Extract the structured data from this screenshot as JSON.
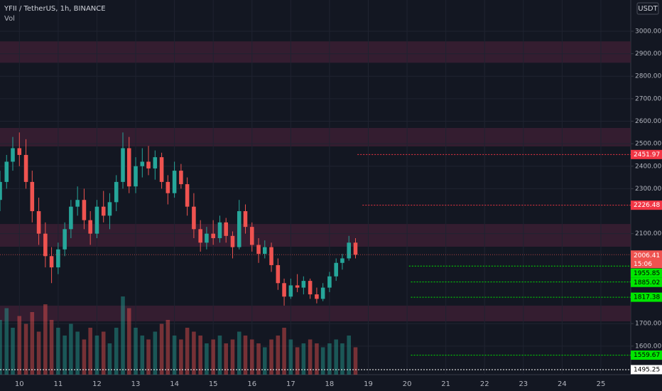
{
  "chart_data": {
    "type": "candlestick",
    "title": "YFII / TetherUS, 1h, BINANCE",
    "volume_label": "Vol",
    "currency": "USDT",
    "xlim": [
      9.5,
      25.77
    ],
    "xticks": [
      10,
      11,
      12,
      13,
      14,
      15,
      16,
      17,
      18,
      19,
      20,
      21,
      22,
      23,
      24,
      25
    ],
    "ylim": [
      1473,
      3139
    ],
    "yticks": [
      {
        "value": 3000,
        "label": "3000.00"
      },
      {
        "value": 2900,
        "label": "2900.00"
      },
      {
        "value": 2800,
        "label": "2800.00"
      },
      {
        "value": 2700,
        "label": "2700.00"
      },
      {
        "value": 2600,
        "label": "2600.00"
      },
      {
        "value": 2500,
        "label": "2500.00"
      },
      {
        "value": 2400,
        "label": "2400.00"
      },
      {
        "value": 2300,
        "label": "2300.00"
      },
      {
        "value": 2100,
        "label": "2100.00"
      },
      {
        "value": 1700,
        "label": "1700.00"
      },
      {
        "value": 1600,
        "label": "1600.00"
      }
    ],
    "grid": true,
    "up_color": "#26a69a",
    "down_color": "#ef5350",
    "zone_color": "#3b1e33",
    "zones": [
      [
        2860,
        2955
      ],
      [
        2488,
        2570
      ],
      [
        2042,
        2143
      ],
      [
        1710,
        1780
      ]
    ],
    "x": [
      9.5,
      9.67,
      9.83,
      10.0,
      10.17,
      10.33,
      10.5,
      10.67,
      10.83,
      11.0,
      11.17,
      11.33,
      11.5,
      11.67,
      11.83,
      12.0,
      12.17,
      12.33,
      12.5,
      12.67,
      12.83,
      13.0,
      13.17,
      13.33,
      13.5,
      13.67,
      13.83,
      14.0,
      14.17,
      14.33,
      14.5,
      14.67,
      14.83,
      15.0,
      15.17,
      15.33,
      15.5,
      15.67,
      15.83,
      16.0,
      16.17,
      16.33,
      16.5,
      16.67,
      16.83,
      17.0,
      17.17,
      17.33,
      17.5,
      17.67,
      17.83,
      18.0,
      18.17,
      18.33,
      18.5,
      18.67
    ],
    "open": [
      2250,
      2330,
      2420,
      2480,
      2450,
      2330,
      2200,
      2100,
      2000,
      1950,
      2030,
      2120,
      2220,
      2250,
      2160,
      2100,
      2220,
      2180,
      2240,
      2330,
      2480,
      2310,
      2400,
      2420,
      2390,
      2440,
      2330,
      2280,
      2380,
      2320,
      2220,
      2120,
      2060,
      2100,
      2080,
      2150,
      2090,
      2040,
      2200,
      2130,
      2050,
      2010,
      2040,
      1960,
      1880,
      1820,
      1870,
      1860,
      1890,
      1830,
      1810,
      1860,
      1910,
      1970,
      1990,
      2060
    ],
    "high": [
      2380,
      2450,
      2530,
      2550,
      2520,
      2380,
      2260,
      2150,
      2040,
      2060,
      2150,
      2250,
      2310,
      2300,
      2200,
      2250,
      2290,
      2280,
      2360,
      2550,
      2530,
      2440,
      2480,
      2490,
      2470,
      2460,
      2360,
      2420,
      2410,
      2350,
      2280,
      2160,
      2130,
      2160,
      2180,
      2170,
      2110,
      2250,
      2230,
      2150,
      2080,
      2070,
      2060,
      1990,
      1900,
      1900,
      1920,
      1910,
      1900,
      1860,
      1880,
      1930,
      1990,
      2010,
      2090,
      2080
    ],
    "low": [
      2200,
      2300,
      2380,
      2400,
      2300,
      2150,
      2050,
      1950,
      1880,
      1920,
      2000,
      2080,
      2180,
      2120,
      2050,
      2080,
      2150,
      2120,
      2200,
      2300,
      2280,
      2280,
      2350,
      2360,
      2340,
      2300,
      2230,
      2260,
      2300,
      2180,
      2080,
      2020,
      2030,
      2050,
      2060,
      2060,
      1990,
      2030,
      2100,
      2020,
      1970,
      1990,
      1930,
      1850,
      1780,
      1810,
      1840,
      1830,
      1810,
      1790,
      1800,
      1840,
      1890,
      1940,
      1980,
      1990
    ],
    "close": [
      2330,
      2420,
      2480,
      2450,
      2330,
      2200,
      2100,
      2000,
      1950,
      2030,
      2120,
      2220,
      2250,
      2160,
      2100,
      2220,
      2180,
      2240,
      2330,
      2480,
      2310,
      2400,
      2420,
      2390,
      2440,
      2330,
      2280,
      2380,
      2320,
      2220,
      2120,
      2060,
      2100,
      2080,
      2150,
      2090,
      2040,
      2200,
      2130,
      2050,
      2010,
      2040,
      1960,
      1880,
      1820,
      1870,
      1860,
      1890,
      1830,
      1810,
      1860,
      1910,
      1970,
      1990,
      2060,
      2006.41
    ],
    "volume": [
      70,
      85,
      60,
      75,
      65,
      80,
      55,
      90,
      70,
      60,
      50,
      65,
      55,
      45,
      60,
      50,
      55,
      40,
      60,
      100,
      85,
      60,
      50,
      45,
      55,
      65,
      70,
      50,
      45,
      60,
      55,
      50,
      40,
      45,
      50,
      40,
      45,
      55,
      50,
      45,
      40,
      35,
      45,
      50,
      60,
      45,
      35,
      40,
      45,
      40,
      35,
      40,
      45,
      40,
      50,
      35
    ],
    "levels": [
      {
        "value": 2451.97,
        "start": 18.72,
        "color": "#f23645"
      },
      {
        "value": 2226.48,
        "start": 18.85,
        "color": "#f23645"
      },
      {
        "value": 1955.85,
        "start": 20.05,
        "color": "#00e600"
      },
      {
        "value": 1885.02,
        "start": 20.1,
        "color": "#00e600"
      },
      {
        "value": 1817.38,
        "start": 20.1,
        "color": "#00e600"
      },
      {
        "value": 1559.67,
        "start": 20.1,
        "color": "#00e600"
      },
      {
        "value": 1495.25,
        "start": 9.5,
        "color": "#ffffff"
      }
    ],
    "last_price": 2006.41,
    "countdown": "15:06"
  }
}
